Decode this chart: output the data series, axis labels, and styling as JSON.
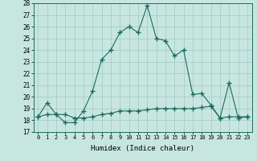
{
  "title": "",
  "xlabel": "Humidex (Indice chaleur)",
  "x": [
    0,
    1,
    2,
    3,
    4,
    5,
    6,
    7,
    8,
    9,
    10,
    11,
    12,
    13,
    14,
    15,
    16,
    17,
    18,
    19,
    20,
    21,
    22,
    23
  ],
  "line1": [
    18.3,
    19.5,
    18.5,
    17.8,
    17.8,
    18.8,
    20.5,
    23.2,
    24.0,
    25.5,
    26.0,
    25.5,
    27.8,
    25.0,
    24.8,
    23.5,
    24.0,
    20.2,
    20.3,
    19.3,
    18.2,
    21.2,
    18.2,
    18.3
  ],
  "line2": [
    18.3,
    18.5,
    18.5,
    18.5,
    18.2,
    18.2,
    18.3,
    18.5,
    18.6,
    18.8,
    18.8,
    18.8,
    18.9,
    19.0,
    19.0,
    19.0,
    19.0,
    19.0,
    19.1,
    19.2,
    18.2,
    18.3,
    18.3,
    18.3
  ],
  "line_color": "#1a6b5e",
  "bg_color": "#c8e6e0",
  "grid_color": "#a0c8c0",
  "ylim": [
    17,
    28
  ],
  "yticks": [
    17,
    18,
    19,
    20,
    21,
    22,
    23,
    24,
    25,
    26,
    27,
    28
  ],
  "marker": "+",
  "markersize": 4.0,
  "linewidth": 0.8
}
